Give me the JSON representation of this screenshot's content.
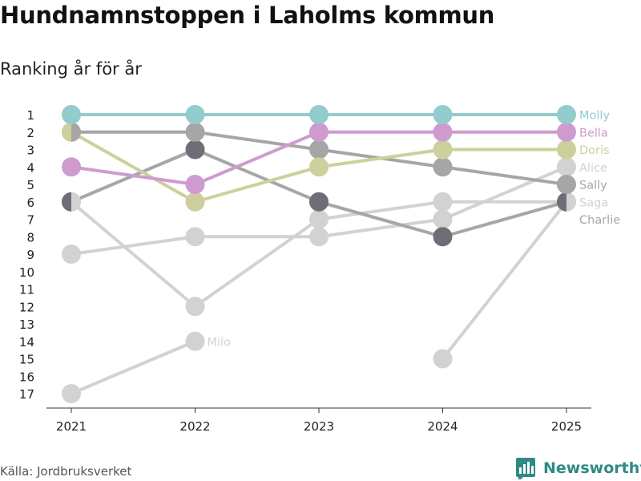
{
  "title": "Hundnamnstoppen i Laholms kommun",
  "subtitle": "Ranking år för år",
  "source": "Källa: Jordbruksverket",
  "brand": {
    "name": "Newsworthy",
    "icon": "newsworthy-logo-icon",
    "color": "#2f8a86"
  },
  "chart_data": {
    "type": "line",
    "title": "Hundnamnstoppen i Laholms kommun",
    "subtitle": "Ranking år för år",
    "xlabel": "",
    "ylabel": "",
    "x": [
      "2021",
      "2022",
      "2023",
      "2024",
      "2025"
    ],
    "y_ticks": [
      "1",
      "2",
      "3",
      "4",
      "5",
      "6",
      "7",
      "8",
      "9",
      "10",
      "11",
      "12",
      "13",
      "14",
      "15",
      "16",
      "17"
    ],
    "ylim": [
      1,
      17
    ],
    "y_inverted": true,
    "grid": false,
    "series": [
      {
        "name": "Milo",
        "color": "#d2d2d2",
        "values": [
          17,
          14,
          null,
          null,
          null
        ],
        "end_label": "Milo",
        "segment_label": "Milo"
      },
      {
        "name": "Milo (2024–2025)",
        "color": "#d2d2d2",
        "values": [
          null,
          null,
          null,
          15,
          6
        ]
      },
      {
        "name": "Saga",
        "color": "#d2d2d2",
        "values": [
          6,
          12,
          7,
          6,
          6
        ],
        "end_label": "Saga"
      },
      {
        "name": "Alice",
        "color": "#d2d2d2",
        "values": [
          9,
          8,
          8,
          7,
          4
        ],
        "end_label": "Alice"
      },
      {
        "name": "Charlie",
        "color": "#6e6e77",
        "line_color": "#a6a6a6",
        "values": [
          6,
          3,
          6,
          8,
          6
        ],
        "end_label": "Charlie"
      },
      {
        "name": "Sally",
        "color": "#a6a6a6",
        "values": [
          2,
          2,
          3,
          4,
          5
        ],
        "end_label": "Sally"
      },
      {
        "name": "Doris",
        "color": "#cdd09c",
        "values": [
          2,
          6,
          4,
          3,
          3
        ],
        "end_label": "Doris"
      },
      {
        "name": "Bella",
        "color": "#cf9bcf",
        "values": [
          4,
          5,
          2,
          2,
          2
        ],
        "end_label": "Bella"
      },
      {
        "name": "Molly",
        "color": "#93cccc",
        "values": [
          1,
          1,
          1,
          1,
          1
        ],
        "end_label": "Molly"
      }
    ]
  }
}
